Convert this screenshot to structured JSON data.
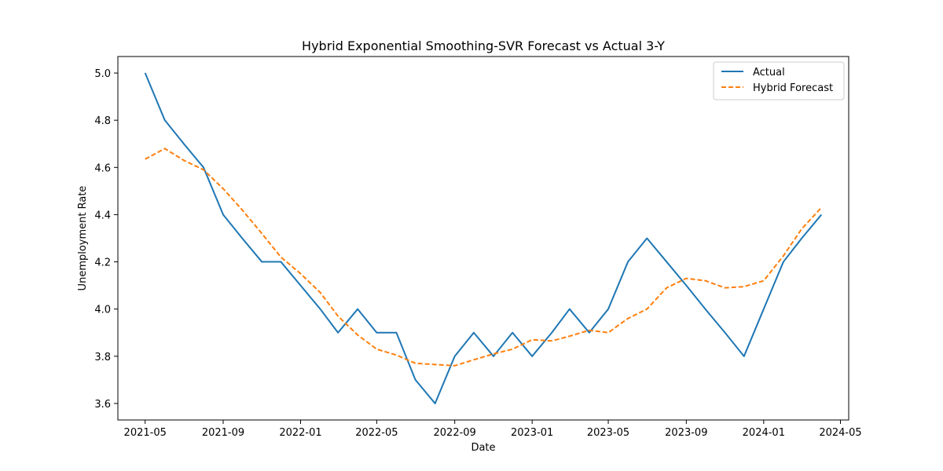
{
  "chart_data": {
    "type": "line",
    "title": "Hybrid Exponential Smoothing-SVR Forecast vs Actual 3-Y",
    "xlabel": "Date",
    "ylabel": "Unemployment Rate",
    "x": [
      "2021-05",
      "2021-06",
      "2021-07",
      "2021-08",
      "2021-09",
      "2021-10",
      "2021-11",
      "2021-12",
      "2022-01",
      "2022-02",
      "2022-03",
      "2022-04",
      "2022-05",
      "2022-06",
      "2022-07",
      "2022-08",
      "2022-09",
      "2022-10",
      "2022-11",
      "2022-12",
      "2023-01",
      "2023-02",
      "2023-03",
      "2023-04",
      "2023-05",
      "2023-06",
      "2023-07",
      "2023-08",
      "2023-09",
      "2023-10",
      "2023-11",
      "2023-12",
      "2024-01",
      "2024-02",
      "2024-03",
      "2024-04"
    ],
    "series": [
      {
        "name": "Actual",
        "color": "#1f77b4",
        "style": "solid",
        "values": [
          5.0,
          4.8,
          4.7,
          4.6,
          4.4,
          4.3,
          4.2,
          4.2,
          4.1,
          4.0,
          3.9,
          4.0,
          3.9,
          3.9,
          3.7,
          3.6,
          3.8,
          3.9,
          3.8,
          3.9,
          3.8,
          3.9,
          4.0,
          3.9,
          4.0,
          4.2,
          4.3,
          4.2,
          4.1,
          4.0,
          3.9,
          3.8,
          4.0,
          4.2,
          4.3,
          4.4
        ]
      },
      {
        "name": "Hybrid Forecast",
        "color": "#ff7f0e",
        "style": "dashed",
        "values": [
          4.635,
          4.68,
          4.63,
          4.59,
          4.51,
          4.42,
          4.32,
          4.22,
          4.15,
          4.07,
          3.97,
          3.89,
          3.83,
          3.805,
          3.77,
          3.765,
          3.76,
          3.785,
          3.81,
          3.83,
          3.87,
          3.865,
          3.885,
          3.91,
          3.9,
          3.96,
          4.0,
          4.09,
          4.13,
          4.12,
          4.09,
          4.095,
          4.12,
          4.225,
          4.34,
          4.43
        ]
      }
    ],
    "x_ticks": [
      "2021-05",
      "2021-09",
      "2022-01",
      "2022-05",
      "2022-09",
      "2023-01",
      "2023-05",
      "2023-09",
      "2024-01",
      "2024-05"
    ],
    "y_ticks": [
      3.6,
      3.8,
      4.0,
      4.2,
      4.4,
      4.6,
      4.8,
      5.0
    ],
    "y_tick_labels": [
      "3.6",
      "3.8",
      "4.0",
      "4.2",
      "4.4",
      "4.6",
      "4.8",
      "5.0"
    ],
    "xlim": [
      "2021-03-19",
      "2024-05-14"
    ],
    "ylim": [
      3.53,
      5.07
    ],
    "grid": false,
    "legend_position": "top-right"
  }
}
